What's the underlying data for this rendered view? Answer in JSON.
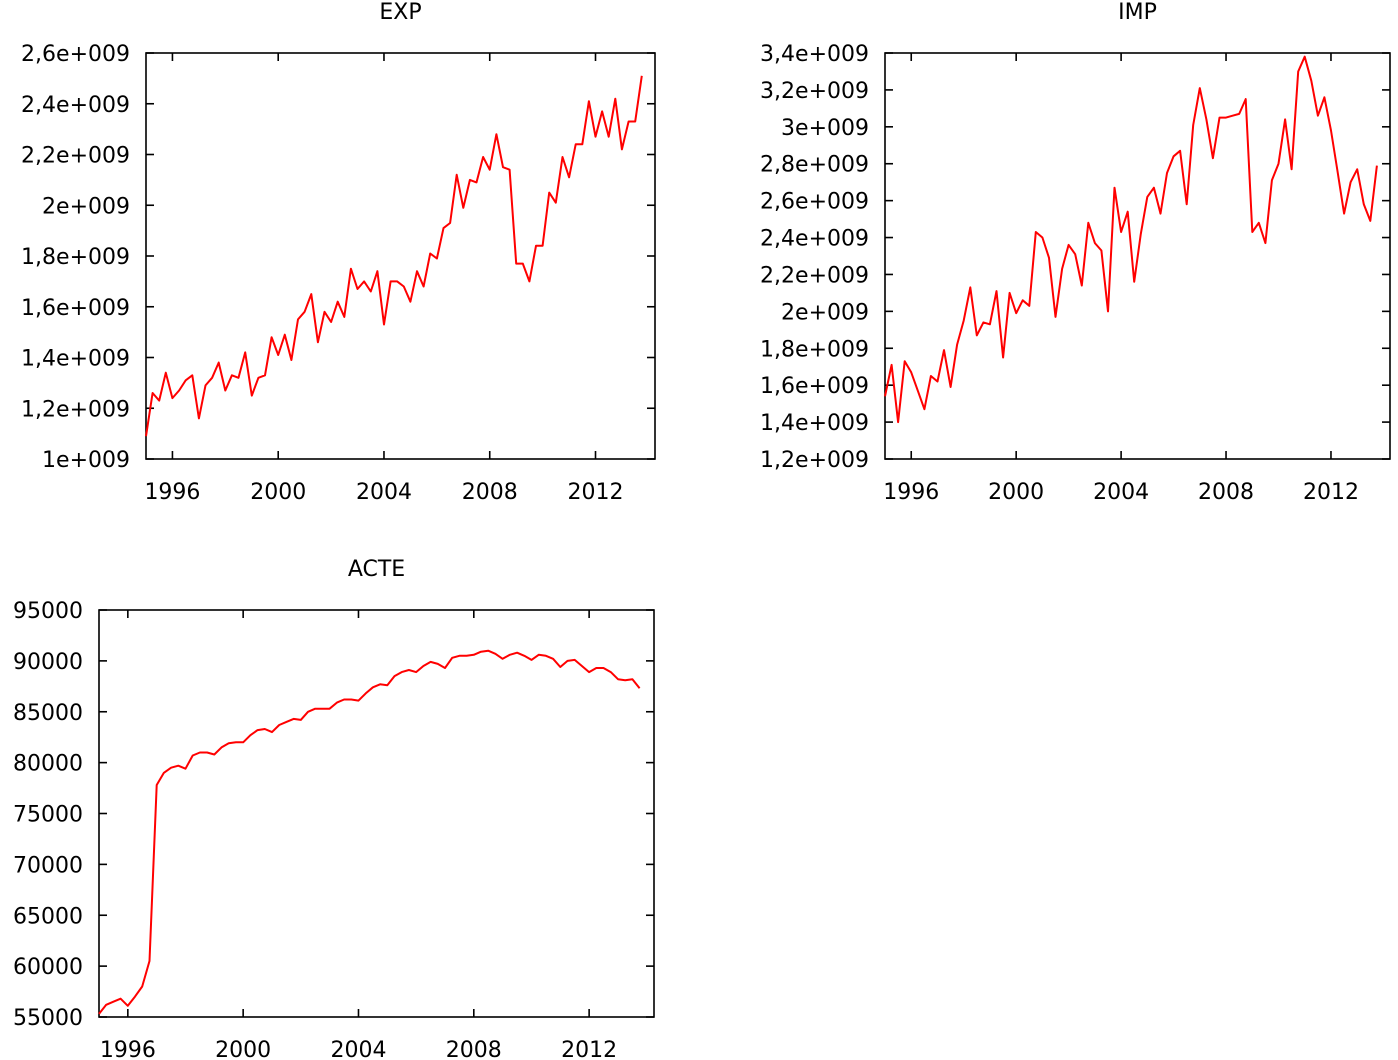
{
  "chart_data": [
    {
      "type": "line",
      "title": "EXP",
      "xlabel": "",
      "ylabel": "",
      "xlim": [
        1995.0,
        2014.25
      ],
      "ylim": [
        1000000000,
        2600000000
      ],
      "xticks": [
        "1996",
        "2000",
        "2004",
        "2008",
        "2012"
      ],
      "yticks": [
        "1e+009",
        "1,2e+009",
        "1,4e+009",
        "1,6e+009",
        "1,8e+009",
        "2e+009",
        "2,2e+009",
        "2,4e+009",
        "2,6e+009"
      ],
      "series": [
        {
          "name": "EXP",
          "color": "#ff0000",
          "x": [
            1995.0,
            1995.25,
            1995.5,
            1995.75,
            1996.0,
            1996.25,
            1996.5,
            1996.75,
            1997.0,
            1997.25,
            1997.5,
            1997.75,
            1998.0,
            1998.25,
            1998.5,
            1998.75,
            1999.0,
            1999.25,
            1999.5,
            1999.75,
            2000.0,
            2000.25,
            2000.5,
            2000.75,
            2001.0,
            2001.25,
            2001.5,
            2001.75,
            2002.0,
            2002.25,
            2002.5,
            2002.75,
            2003.0,
            2003.25,
            2003.5,
            2003.75,
            2004.0,
            2004.25,
            2004.5,
            2004.75,
            2005.0,
            2005.25,
            2005.5,
            2005.75,
            2006.0,
            2006.25,
            2006.5,
            2006.75,
            2007.0,
            2007.25,
            2007.5,
            2007.75,
            2008.0,
            2008.25,
            2008.5,
            2008.75,
            2009.0,
            2009.25,
            2009.5,
            2009.75,
            2010.0,
            2010.25,
            2010.5,
            2010.75,
            2011.0,
            2011.25,
            2011.5,
            2011.75,
            2012.0,
            2012.25,
            2012.5,
            2012.75,
            2013.0,
            2013.25,
            2013.5,
            2013.75
          ],
          "values": [
            1090000000,
            1260000000,
            1230000000,
            1340000000,
            1240000000,
            1270000000,
            1310000000,
            1330000000,
            1160000000,
            1290000000,
            1320000000,
            1380000000,
            1270000000,
            1330000000,
            1320000000,
            1420000000,
            1250000000,
            1320000000,
            1330000000,
            1480000000,
            1410000000,
            1490000000,
            1390000000,
            1550000000,
            1580000000,
            1650000000,
            1460000000,
            1580000000,
            1540000000,
            1620000000,
            1560000000,
            1750000000,
            1670000000,
            1700000000,
            1660000000,
            1740000000,
            1530000000,
            1700000000,
            1700000000,
            1680000000,
            1620000000,
            1740000000,
            1680000000,
            1810000000,
            1790000000,
            1910000000,
            1930000000,
            2120000000,
            1990000000,
            2100000000,
            2090000000,
            2190000000,
            2140000000,
            2280000000,
            2150000000,
            2140000000,
            1770000000,
            1770000000,
            1700000000,
            1840000000,
            1840000000,
            2050000000,
            2010000000,
            2190000000,
            2110000000,
            2240000000,
            2240000000,
            2410000000,
            2270000000,
            2370000000,
            2270000000,
            2420000000,
            2220000000,
            2330000000,
            2330000000,
            2510000000
          ]
        }
      ]
    },
    {
      "type": "line",
      "title": "IMP",
      "xlabel": "",
      "ylabel": "",
      "xlim": [
        1995.0,
        2014.25
      ],
      "ylim": [
        1200000000,
        3400000000
      ],
      "xticks": [
        "1996",
        "2000",
        "2004",
        "2008",
        "2012"
      ],
      "yticks": [
        "1,2e+009",
        "1,4e+009",
        "1,6e+009",
        "1,8e+009",
        "2e+009",
        "2,2e+009",
        "2,4e+009",
        "2,6e+009",
        "2,8e+009",
        "3e+009",
        "3,2e+009",
        "3,4e+009"
      ],
      "series": [
        {
          "name": "IMP",
          "color": "#ff0000",
          "x": [
            1995.0,
            1995.25,
            1995.5,
            1995.75,
            1996.0,
            1996.25,
            1996.5,
            1996.75,
            1997.0,
            1997.25,
            1997.5,
            1997.75,
            1998.0,
            1998.25,
            1998.5,
            1998.75,
            1999.0,
            1999.25,
            1999.5,
            1999.75,
            2000.0,
            2000.25,
            2000.5,
            2000.75,
            2001.0,
            2001.25,
            2001.5,
            2001.75,
            2002.0,
            2002.25,
            2002.5,
            2002.75,
            2003.0,
            2003.25,
            2003.5,
            2003.75,
            2004.0,
            2004.25,
            2004.5,
            2004.75,
            2005.0,
            2005.25,
            2005.5,
            2005.75,
            2006.0,
            2006.25,
            2006.5,
            2006.75,
            2007.0,
            2007.25,
            2007.5,
            2007.75,
            2008.0,
            2008.25,
            2008.5,
            2008.75,
            2009.0,
            2009.25,
            2009.5,
            2009.75,
            2010.0,
            2010.25,
            2010.5,
            2010.75,
            2011.0,
            2011.25,
            2011.5,
            2011.75,
            2012.0,
            2012.25,
            2012.5,
            2012.75,
            2013.0,
            2013.25,
            2013.5,
            2013.75
          ],
          "values": [
            1540000000,
            1710000000,
            1400000000,
            1730000000,
            1670000000,
            1570000000,
            1470000000,
            1650000000,
            1620000000,
            1790000000,
            1590000000,
            1820000000,
            1950000000,
            2130000000,
            1870000000,
            1940000000,
            1930000000,
            2110000000,
            1750000000,
            2100000000,
            1990000000,
            2060000000,
            2030000000,
            2430000000,
            2400000000,
            2290000000,
            1970000000,
            2230000000,
            2360000000,
            2310000000,
            2140000000,
            2480000000,
            2370000000,
            2330000000,
            2000000000,
            2670000000,
            2430000000,
            2540000000,
            2160000000,
            2420000000,
            2620000000,
            2670000000,
            2530000000,
            2750000000,
            2840000000,
            2870000000,
            2580000000,
            3010000000,
            3210000000,
            3040000000,
            2830000000,
            3050000000,
            3050000000,
            3060000000,
            3070000000,
            3150000000,
            2430000000,
            2480000000,
            2370000000,
            2710000000,
            2800000000,
            3040000000,
            2770000000,
            3300000000,
            3380000000,
            3250000000,
            3060000000,
            3160000000,
            2980000000,
            2760000000,
            2530000000,
            2700000000,
            2770000000,
            2580000000,
            2490000000,
            2790000000
          ]
        }
      ]
    },
    {
      "type": "line",
      "title": "ACTE",
      "xlabel": "",
      "ylabel": "",
      "xlim": [
        1995.0,
        2014.25
      ],
      "ylim": [
        55000,
        95000
      ],
      "xticks": [
        "1996",
        "2000",
        "2004",
        "2008",
        "2012"
      ],
      "yticks": [
        "55000",
        "60000",
        "65000",
        "70000",
        "75000",
        "80000",
        "85000",
        "90000",
        "95000"
      ],
      "series": [
        {
          "name": "ACTE",
          "color": "#ff0000",
          "x": [
            1995.0,
            1995.25,
            1995.5,
            1995.75,
            1996.0,
            1996.25,
            1996.5,
            1996.75,
            1997.0,
            1997.25,
            1997.5,
            1997.75,
            1998.0,
            1998.25,
            1998.5,
            1998.75,
            1999.0,
            1999.25,
            1999.5,
            1999.75,
            2000.0,
            2000.25,
            2000.5,
            2000.75,
            2001.0,
            2001.25,
            2001.5,
            2001.75,
            2002.0,
            2002.25,
            2002.5,
            2002.75,
            2003.0,
            2003.25,
            2003.5,
            2003.75,
            2004.0,
            2004.25,
            2004.5,
            2004.75,
            2005.0,
            2005.25,
            2005.5,
            2005.75,
            2006.0,
            2006.25,
            2006.5,
            2006.75,
            2007.0,
            2007.25,
            2007.5,
            2007.75,
            2008.0,
            2008.25,
            2008.5,
            2008.75,
            2009.0,
            2009.25,
            2009.5,
            2009.75,
            2010.0,
            2010.25,
            2010.5,
            2010.75,
            2011.0,
            2011.25,
            2011.5,
            2011.75,
            2012.0,
            2012.25,
            2012.5,
            2012.75,
            2013.0,
            2013.25,
            2013.5,
            2013.75
          ],
          "values": [
            55300,
            56200,
            56500,
            56800,
            56100,
            57000,
            58000,
            60500,
            77800,
            79000,
            79500,
            79700,
            79400,
            80700,
            81000,
            81000,
            80800,
            81500,
            81900,
            82000,
            82000,
            82700,
            83200,
            83300,
            83000,
            83700,
            84000,
            84300,
            84200,
            85000,
            85300,
            85300,
            85300,
            85900,
            86200,
            86200,
            86100,
            86800,
            87400,
            87700,
            87600,
            88500,
            88900,
            89100,
            88900,
            89500,
            89900,
            89700,
            89300,
            90300,
            90500,
            90500,
            90600,
            90900,
            91000,
            90700,
            90200,
            90600,
            90800,
            90500,
            90100,
            90600,
            90500,
            90200,
            89400,
            90000,
            90100,
            89500,
            88900,
            89300,
            89300,
            88900,
            88200,
            88100,
            88200,
            87300
          ]
        }
      ]
    }
  ]
}
